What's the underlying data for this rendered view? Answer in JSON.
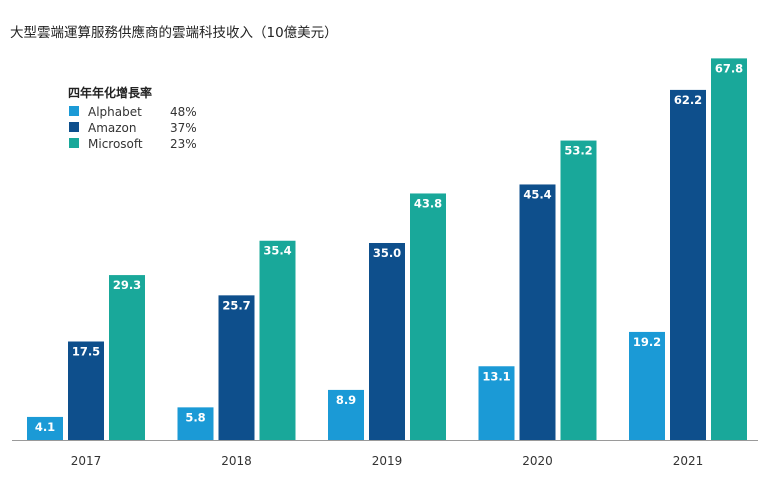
{
  "chart_data": {
    "type": "bar",
    "title": "大型雲端運算服務供應商的雲端科技收入（10億美元）",
    "xlabel": "",
    "ylabel": "",
    "ylim": [
      0,
      70
    ],
    "grid": false,
    "categories": [
      "2017",
      "2018",
      "2019",
      "2020",
      "2021"
    ],
    "legend": {
      "title": "四年年化增長率",
      "placement": "top-left"
    },
    "series": [
      {
        "name": "Alphabet",
        "growth": "48%",
        "color": "#1b9ad6",
        "values": [
          4.1,
          5.8,
          8.9,
          13.1,
          19.2
        ]
      },
      {
        "name": "Amazon",
        "growth": "37%",
        "color": "#0e4f8c",
        "values": [
          17.5,
          25.7,
          35.0,
          45.4,
          62.2
        ]
      },
      {
        "name": "Microsoft",
        "growth": "23%",
        "color": "#19a89a",
        "values": [
          29.3,
          35.4,
          43.8,
          53.2,
          67.8
        ]
      }
    ],
    "value_labels": [
      [
        "4.1",
        "5.8",
        "8.9",
        "13.1",
        "19.2"
      ],
      [
        "17.5",
        "25.7",
        "35.0",
        "45.4",
        "62.2"
      ],
      [
        "29.3",
        "35.4",
        "43.8",
        "53.2",
        "67.8"
      ]
    ]
  }
}
